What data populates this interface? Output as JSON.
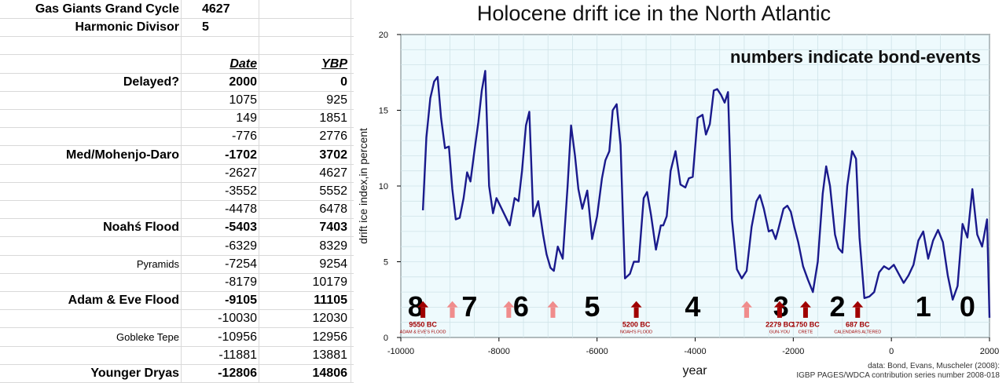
{
  "sheet": {
    "rows": [
      {
        "a": "Gas Giants Grand Cycle",
        "b": "4627",
        "c": "",
        "bold": true,
        "top": true
      },
      {
        "a": "Harmonic Divisor",
        "b": "5",
        "c": "",
        "bold": true,
        "top": true
      },
      {
        "a": "",
        "b": "",
        "c": ""
      },
      {
        "a": "",
        "b": "Date",
        "c": "YBP",
        "header": true
      },
      {
        "a": "Delayed?",
        "b": "2000",
        "c": "0",
        "bold": true
      },
      {
        "a": "",
        "b": "1075",
        "c": "925"
      },
      {
        "a": "",
        "b": "149",
        "c": "1851"
      },
      {
        "a": "",
        "b": "-776",
        "c": "2776"
      },
      {
        "a": "Med/Mohenjo-Daro",
        "b": "-1702",
        "c": "3702",
        "bold": true
      },
      {
        "a": "",
        "b": "-2627",
        "c": "4627"
      },
      {
        "a": "",
        "b": "-3552",
        "c": "5552"
      },
      {
        "a": "",
        "b": "-4478",
        "c": "6478"
      },
      {
        "a": "Noahś Flood",
        "b": "-5403",
        "c": "7403",
        "bold": true
      },
      {
        "a": "",
        "b": "-6329",
        "c": "8329"
      },
      {
        "a": "Pyramids",
        "b": "-7254",
        "c": "9254",
        "small": true
      },
      {
        "a": "",
        "b": "-8179",
        "c": "10179"
      },
      {
        "a": "Adam & Eve Flood",
        "b": "-9105",
        "c": "11105",
        "bold": true
      },
      {
        "a": "",
        "b": "-10030",
        "c": "12030"
      },
      {
        "a": "Gobleke Tepe",
        "b": "-10956",
        "c": "12956",
        "small": true
      },
      {
        "a": "",
        "b": "-11881",
        "c": "13881"
      },
      {
        "a": "Younger Dryas",
        "b": "-12806",
        "c": "14806",
        "bold": true
      }
    ]
  },
  "chart_data": {
    "type": "line",
    "title": "Holocene drift ice in the North Atlantic",
    "xlabel": "year",
    "ylabel": "drift ice index,in percent",
    "xlim": [
      -10000,
      2000
    ],
    "ylim": [
      0,
      20
    ],
    "xticks": [
      -10000,
      -8000,
      -6000,
      -4000,
      -2000,
      0,
      2000
    ],
    "yticks": [
      0,
      5,
      10,
      15,
      20
    ],
    "grid": true,
    "annotation": "numbers indicate bond-events",
    "source_line1": "data: Bond, Evans, Muscheler (2008):",
    "source_line2": "IGBP PAGES/WDCA contribution series number 2008-018",
    "line_color": "#1a1a8c",
    "background_color": "#eefafd",
    "x": [
      -9550,
      -9480,
      -9400,
      -9320,
      -9250,
      -9180,
      -9100,
      -9020,
      -8950,
      -8880,
      -8800,
      -8720,
      -8650,
      -8580,
      -8500,
      -8420,
      -8350,
      -8280,
      -8200,
      -8120,
      -8050,
      -7900,
      -7780,
      -7680,
      -7600,
      -7530,
      -7450,
      -7380,
      -7300,
      -7200,
      -7100,
      -7030,
      -6950,
      -6880,
      -6800,
      -6700,
      -6600,
      -6530,
      -6450,
      -6380,
      -6300,
      -6200,
      -6100,
      -6000,
      -5900,
      -5830,
      -5750,
      -5680,
      -5600,
      -5520,
      -5430,
      -5330,
      -5250,
      -5150,
      -5050,
      -4980,
      -4900,
      -4800,
      -4700,
      -4650,
      -4580,
      -4500,
      -4400,
      -4300,
      -4200,
      -4130,
      -4050,
      -3950,
      -3850,
      -3780,
      -3700,
      -3620,
      -3550,
      -3470,
      -3400,
      -3330,
      -3250,
      -3150,
      -3050,
      -2950,
      -2850,
      -2750,
      -2680,
      -2600,
      -2500,
      -2430,
      -2360,
      -2300,
      -2200,
      -2120,
      -2050,
      -1980,
      -1900,
      -1800,
      -1700,
      -1600,
      -1500,
      -1400,
      -1330,
      -1250,
      -1150,
      -1080,
      -1000,
      -900,
      -800,
      -720,
      -650,
      -550,
      -450,
      -350,
      -250,
      -150,
      -50,
      50,
      150,
      250,
      350,
      450,
      550,
      650,
      750,
      850,
      950,
      1050,
      1150,
      1250,
      1350,
      1450,
      1550,
      1650,
      1750,
      1850,
      1950,
      2000
    ],
    "values": [
      8.4,
      13.2,
      15.8,
      16.9,
      17.2,
      14.5,
      12.5,
      12.6,
      9.8,
      7.8,
      7.9,
      9.2,
      10.9,
      10.3,
      12.3,
      14.2,
      16.3,
      17.6,
      10,
      8.2,
      9.2,
      8.2,
      7.4,
      9.2,
      9,
      11,
      14,
      14.9,
      8,
      9,
      6.8,
      5.5,
      4.6,
      4.4,
      6,
      5.2,
      10,
      14,
      12,
      9.8,
      8.5,
      9.7,
      6.5,
      8,
      10.5,
      11.7,
      12.3,
      15,
      15.4,
      12.7,
      3.9,
      4.2,
      5,
      5,
      9.2,
      9.6,
      8.1,
      5.8,
      7.4,
      7.4,
      8,
      11,
      12.3,
      10.1,
      9.9,
      10.5,
      10.6,
      14.5,
      14.7,
      13.4,
      14.1,
      16.3,
      16.4,
      16,
      15.5,
      16.2,
      7.8,
      4.5,
      3.9,
      4.4,
      7.3,
      9,
      9.4,
      8.5,
      7,
      7.1,
      6.5,
      7.2,
      8.5,
      8.7,
      8.3,
      7.3,
      6.3,
      4.7,
      3.8,
      3,
      5,
      9.5,
      11.3,
      10,
      6.8,
      5.9,
      5.6,
      10,
      12.3,
      11.8,
      6.6,
      2.6,
      2.7,
      3,
      4.3,
      4.7,
      4.5,
      4.8,
      4.2,
      3.6,
      4.1,
      4.8,
      6.4,
      7,
      5.2,
      6.4,
      7.1,
      6.3,
      4.1,
      2.5,
      3.4,
      7.5,
      6.6,
      9.8,
      6.8,
      6,
      7.8,
      1.3
    ]
  },
  "bond_events": [
    {
      "label": "8",
      "x": -9700
    },
    {
      "label": "7",
      "x": -8600
    },
    {
      "label": "6",
      "x": -7550
    },
    {
      "label": "5",
      "x": -6100
    },
    {
      "label": "4",
      "x": -4050
    },
    {
      "label": "3",
      "x": -2250
    },
    {
      "label": "2",
      "x": -1100
    },
    {
      "label": "1",
      "x": 650
    },
    {
      "label": "0",
      "x": 1550
    }
  ],
  "markers": [
    {
      "x": -9550,
      "type": "event",
      "label": "9550 BC",
      "sublabel": "ADAM & EVE'S FLOOD"
    },
    {
      "x": -8950,
      "type": "faint",
      "label": "",
      "sublabel": ""
    },
    {
      "x": -7800,
      "type": "faint",
      "label": "",
      "sublabel": ""
    },
    {
      "x": -6900,
      "type": "faint",
      "label": "",
      "sublabel": ""
    },
    {
      "x": -5200,
      "type": "event",
      "label": "5200 BC",
      "sublabel": "NOAH'S FLOOD"
    },
    {
      "x": -2950,
      "type": "faint",
      "label": "",
      "sublabel": ""
    },
    {
      "x": -2279,
      "type": "event",
      "label": "2279 BC",
      "sublabel": "GUN-YOU"
    },
    {
      "x": -1750,
      "type": "event",
      "label": "1750 BC",
      "sublabel": "CRETE"
    },
    {
      "x": -687,
      "type": "event",
      "label": "687 BC",
      "sublabel": "CALENDARS ALTERED"
    }
  ],
  "marker_colors": {
    "event": "#a00000",
    "faint": "#f08c8c"
  }
}
